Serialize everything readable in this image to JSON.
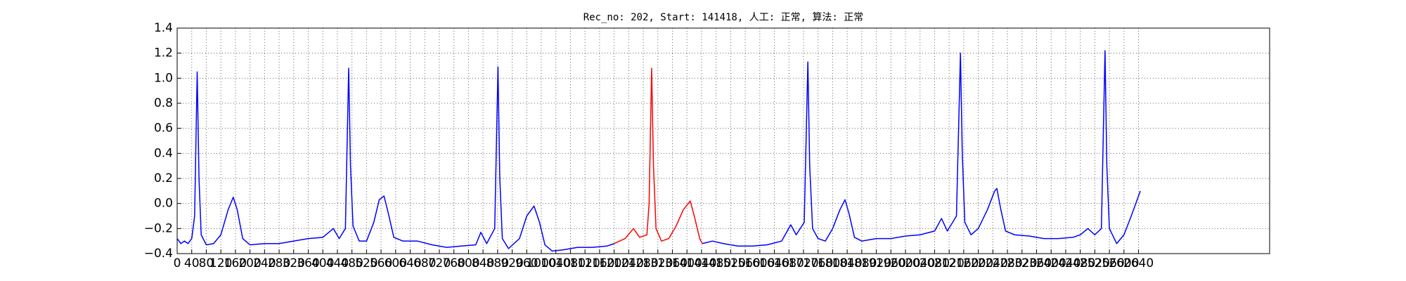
{
  "chart_data": {
    "type": "line",
    "title": "Rec_no: 202, Start: 141418, 人工: 正常, 算法: 正常",
    "x": [
      0,
      10,
      20,
      30,
      40,
      48,
      55,
      60,
      66,
      80,
      100,
      120,
      140,
      154,
      165,
      180,
      200,
      240,
      280,
      320,
      360,
      400,
      429,
      445,
      462,
      471,
      476,
      483,
      500,
      520,
      540,
      555,
      568,
      580,
      595,
      620,
      660,
      700,
      740,
      780,
      820,
      834,
      850,
      872,
      881,
      886,
      893,
      910,
      940,
      960,
      980,
      995,
      1010,
      1030,
      1060,
      1100,
      1140,
      1180,
      1200,
      1230,
      1253,
      1270,
      1290,
      1296,
      1303,
      1308,
      1315,
      1330,
      1350,
      1370,
      1390,
      1409,
      1420,
      1435,
      1442,
      1470,
      1500,
      1540,
      1580,
      1620,
      1660,
      1685,
      1700,
      1722,
      1732,
      1737,
      1745,
      1760,
      1780,
      1800,
      1820,
      1834,
      1845,
      1860,
      1880,
      1920,
      1960,
      2000,
      2040,
      2080,
      2099,
      2115,
      2140,
      2151,
      2156,
      2163,
      2180,
      2200,
      2225,
      2245,
      2251,
      2262,
      2275,
      2300,
      2340,
      2380,
      2420,
      2460,
      2480,
      2501,
      2520,
      2538,
      2548,
      2553,
      2560,
      2580,
      2600,
      2620,
      2645
    ],
    "series": [
      {
        "color": "#0000ff",
        "values": [
          -0.28,
          -0.32,
          -0.3,
          -0.32,
          -0.28,
          -0.1,
          1.05,
          0.2,
          -0.25,
          -0.33,
          -0.32,
          -0.25,
          -0.05,
          0.05,
          -0.05,
          -0.28,
          -0.33,
          -0.32,
          -0.32,
          -0.3,
          -0.28,
          -0.27,
          -0.2,
          -0.28,
          -0.2,
          1.08,
          0.3,
          -0.18,
          -0.3,
          -0.3,
          -0.15,
          0.03,
          0.06,
          -0.08,
          -0.27,
          -0.3,
          -0.3,
          -0.33,
          -0.35,
          -0.34,
          -0.33,
          -0.23,
          -0.32,
          -0.2,
          1.09,
          0.2,
          -0.28,
          -0.36,
          -0.28,
          -0.1,
          -0.02,
          -0.15,
          -0.33,
          -0.38,
          -0.37,
          -0.35,
          -0.35,
          -0.34,
          -0.32,
          null,
          null,
          null,
          null,
          null,
          null,
          null,
          null,
          null,
          null,
          null,
          null,
          null,
          null,
          null,
          -0.32,
          -0.3,
          -0.32,
          -0.34,
          -0.34,
          -0.33,
          -0.3,
          -0.17,
          -0.25,
          -0.15,
          1.13,
          0.3,
          -0.2,
          -0.28,
          -0.3,
          -0.2,
          -0.05,
          0.03,
          -0.08,
          -0.27,
          -0.3,
          -0.28,
          -0.28,
          -0.26,
          -0.25,
          -0.22,
          -0.12,
          -0.22,
          -0.1,
          1.2,
          0.4,
          -0.15,
          -0.25,
          -0.2,
          -0.05,
          0.1,
          0.12,
          -0.05,
          -0.22,
          -0.25,
          -0.26,
          -0.28,
          -0.28,
          -0.27,
          -0.25,
          -0.2,
          -0.25,
          -0.2,
          1.22,
          0.3,
          -0.2,
          -0.32,
          -0.25,
          -0.1,
          0.1
        ]
      },
      {
        "color": "#ff0000",
        "values": [
          null,
          null,
          null,
          null,
          null,
          null,
          null,
          null,
          null,
          null,
          null,
          null,
          null,
          null,
          null,
          null,
          null,
          null,
          null,
          null,
          null,
          null,
          null,
          null,
          null,
          null,
          null,
          null,
          null,
          null,
          null,
          null,
          null,
          null,
          null,
          null,
          null,
          null,
          null,
          null,
          null,
          null,
          null,
          null,
          null,
          null,
          null,
          null,
          null,
          null,
          null,
          null,
          null,
          null,
          null,
          null,
          null,
          null,
          -0.32,
          -0.28,
          -0.2,
          -0.27,
          -0.25,
          0.0,
          1.08,
          0.3,
          -0.2,
          -0.3,
          -0.28,
          -0.18,
          -0.05,
          0.02,
          -0.1,
          -0.28,
          -0.32,
          null,
          null,
          null,
          null,
          null,
          null,
          null,
          null,
          null,
          null,
          null,
          null,
          null,
          null,
          null,
          null,
          null,
          null,
          null,
          null,
          null,
          null,
          null,
          null,
          null,
          null,
          null,
          null,
          null,
          null,
          null,
          null,
          null,
          null,
          null,
          null,
          null,
          null,
          null,
          null,
          null,
          null,
          null,
          null,
          null,
          null,
          null,
          null,
          null,
          null,
          null,
          null,
          null,
          null
        ]
      }
    ],
    "xlim": [
      0,
      3000
    ],
    "xticks": [
      0,
      40,
      80,
      120,
      160,
      200,
      240,
      280,
      320,
      360,
      400,
      440,
      480,
      520,
      560,
      600,
      640,
      680,
      720,
      760,
      800,
      840,
      880,
      920,
      960,
      1000,
      1040,
      1080,
      1120,
      1160,
      1200,
      1240,
      1280,
      1320,
      1360,
      1400,
      1440,
      1480,
      1520,
      1560,
      1600,
      1640,
      1680,
      1720,
      1760,
      1800,
      1840,
      1880,
      1920,
      1960,
      2000,
      2040,
      2080,
      2120,
      2160,
      2200,
      2240,
      2280,
      2320,
      2360,
      2400,
      2440,
      2480,
      2520,
      2560,
      2600,
      2640
    ],
    "ylim": [
      -0.4,
      1.4
    ],
    "yticks": [
      {
        "value": -0.4,
        "label": "−0.4"
      },
      {
        "value": -0.2,
        "label": "−0.2"
      },
      {
        "value": 0,
        "label": "0.0"
      },
      {
        "value": 0.2,
        "label": "0.2"
      },
      {
        "value": 0.4,
        "label": "0.4"
      },
      {
        "value": 0.6,
        "label": "0.6"
      },
      {
        "value": 0.8,
        "label": "0.8"
      },
      {
        "value": 1,
        "label": "1.0"
      },
      {
        "value": 1.2,
        "label": "1.2"
      },
      {
        "value": 1.4,
        "label": "1.4"
      }
    ],
    "grid": true
  }
}
